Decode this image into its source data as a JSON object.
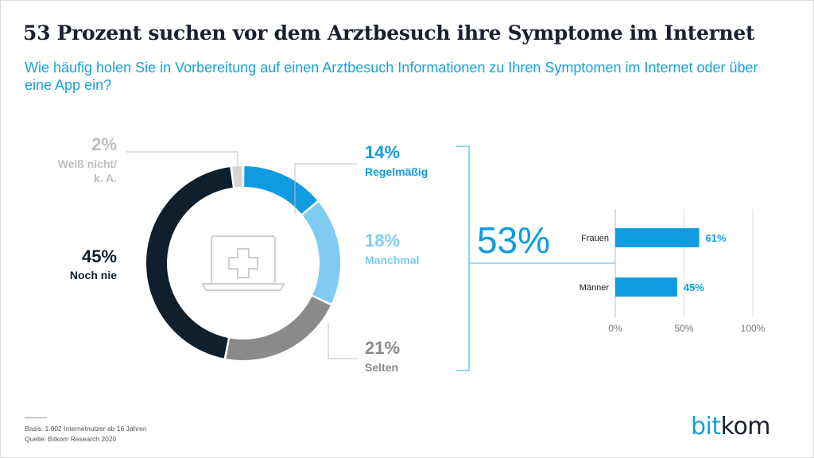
{
  "title": "53 Prozent suchen vor dem Arztbesuch ihre Symptome im Internet",
  "subtitle": "Wie häufig holen Sie in Vorbereitung auf einen Arztbesuch Informationen zu Ihren Symptomen im Internet oder über eine App ein?",
  "chart_data": [
    {
      "type": "pie",
      "variant": "donut",
      "title": "",
      "slices": [
        {
          "label": "Regelmäßig",
          "value": 14,
          "display": "14%",
          "color": "#0f9be0"
        },
        {
          "label": "Manchmal",
          "value": 18,
          "display": "18%",
          "color": "#7fcbf2"
        },
        {
          "label": "Selten",
          "value": 21,
          "display": "21%",
          "color": "#8a8a8a"
        },
        {
          "label": "Noch nie",
          "value": 45,
          "display": "45%",
          "color": "#0f1f2c"
        },
        {
          "label": "Weiß nicht/ k. A.",
          "value": 2,
          "display": "2%",
          "color": "#d6d6d6"
        }
      ],
      "center_icon": "laptop-medical-cross-icon"
    },
    {
      "type": "bar",
      "orientation": "horizontal",
      "title": "",
      "highlight": "53%",
      "categories": [
        "Frauen",
        "Männer"
      ],
      "values": [
        61,
        45
      ],
      "value_labels": [
        "61%",
        "45%"
      ],
      "xlim": [
        0,
        100
      ],
      "ticks": [
        "0%",
        "50%",
        "100%"
      ],
      "tick_values": [
        0,
        50,
        100
      ],
      "grid": true,
      "color": "#0f9be0"
    }
  ],
  "footer": {
    "basis": "Basis: 1.002 Internetnutzer ab 16 Jahren",
    "source": "Quelle: Bitkom Research 2020"
  },
  "logo": {
    "part1": "bit",
    "part2": "kom",
    "color1": "#16a0dc",
    "color2": "#1a1f2e"
  }
}
